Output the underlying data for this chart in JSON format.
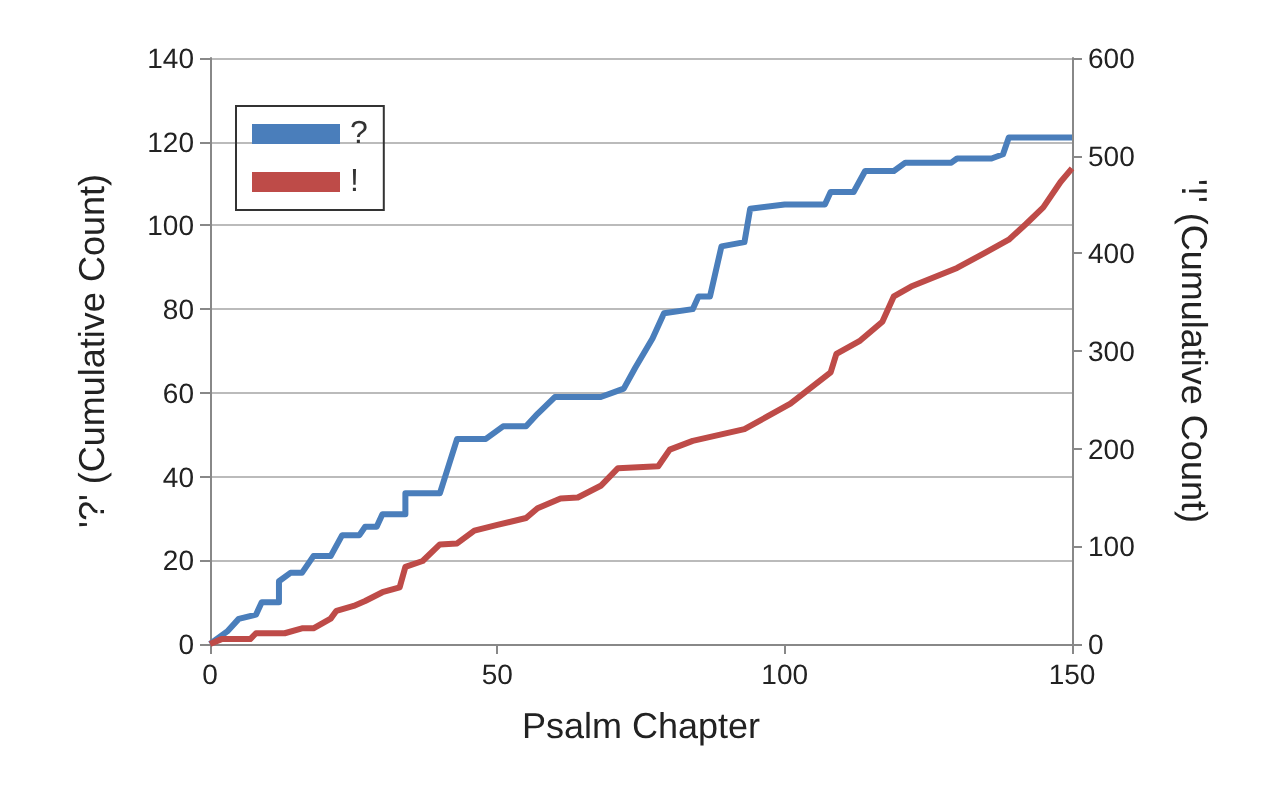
{
  "chart_data": {
    "type": "line",
    "xlabel": "Psalm Chapter",
    "ylabel": "'?' (Cumulative Count)",
    "y2label": "'!' (Cumulative Count)",
    "xlim": [
      0,
      150
    ],
    "xticks": [
      0,
      50,
      100,
      150
    ],
    "ylim": [
      0,
      140
    ],
    "yticks": [
      0,
      20,
      40,
      60,
      80,
      100,
      120,
      140
    ],
    "y2lim": [
      0,
      600
    ],
    "y2ticks": [
      0,
      100,
      200,
      300,
      400,
      500,
      600
    ],
    "grid": "y",
    "legend": "top left",
    "marker": "none",
    "line_style": "solid",
    "series": [
      {
        "name": "?",
        "color": "#4a7ebb",
        "x": [
          0,
          3,
          5,
          8,
          9,
          12,
          12,
          14,
          16,
          18,
          21,
          23,
          26,
          27,
          29,
          30,
          34,
          34,
          40,
          43,
          48,
          51,
          55,
          57,
          60,
          68,
          72,
          74,
          77,
          79,
          84,
          85,
          87,
          89,
          93,
          94,
          100,
          107,
          108,
          112,
          114,
          119,
          121,
          129,
          130,
          136,
          138,
          139,
          150
        ],
        "values": [
          0,
          3,
          6,
          7,
          10,
          10,
          15,
          17,
          17,
          21,
          21,
          26,
          26,
          28,
          28,
          31,
          31,
          36,
          36,
          49,
          49,
          52,
          52,
          55,
          59,
          59,
          61,
          66,
          73,
          79,
          80,
          83,
          83,
          95,
          96,
          104,
          105,
          105,
          108,
          108,
          113,
          113,
          115,
          115,
          116,
          116,
          117,
          121,
          121
        ]
      },
      {
        "name": "!",
        "color": "#be4b48",
        "x": [
          0,
          2,
          7,
          8,
          13,
          16,
          18,
          21,
          22,
          25,
          27,
          30,
          33,
          34,
          37,
          40,
          43,
          46,
          50,
          55,
          57,
          61,
          64,
          68,
          71,
          78,
          80,
          84,
          93,
          97,
          101,
          108,
          109,
          113,
          117,
          119,
          122,
          130,
          135,
          139,
          142,
          145,
          148,
          150
        ],
        "values": [
          0,
          5,
          5,
          11,
          11,
          16,
          16,
          26,
          34,
          39,
          44,
          53,
          58,
          79,
          85,
          102,
          103,
          116,
          122,
          129,
          139,
          149,
          150,
          162,
          180,
          182,
          199,
          208,
          220,
          233,
          246,
          278,
          297,
          310,
          330,
          356,
          366,
          385,
          401,
          414,
          430,
          447,
          473,
          487
        ],
        "axis": "y2"
      }
    ]
  }
}
